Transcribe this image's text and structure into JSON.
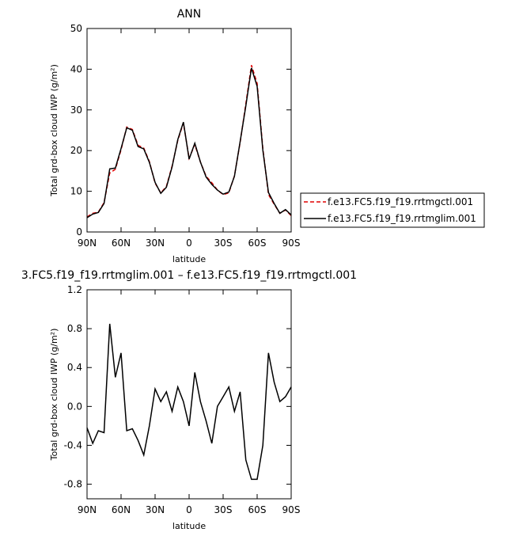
{
  "chart_data": [
    {
      "type": "line",
      "title": "ANN",
      "xlabel": "latitude",
      "ylabel": "Total grd-box cloud IWP (g/m²)",
      "x": [
        90,
        85,
        80,
        75,
        70,
        65,
        60,
        55,
        50,
        45,
        40,
        35,
        30,
        25,
        20,
        15,
        10,
        5,
        0,
        -5,
        -10,
        -15,
        -20,
        -25,
        -30,
        -35,
        -40,
        -45,
        -50,
        -55,
        -60,
        -65,
        -70,
        -75,
        -80,
        -85,
        -90
      ],
      "xlim": [
        90,
        -90
      ],
      "xticks": [
        {
          "value": 90,
          "label": "90N"
        },
        {
          "value": 60,
          "label": "60N"
        },
        {
          "value": 30,
          "label": "30N"
        },
        0,
        {
          "value": -30,
          "label": "30S"
        },
        {
          "value": -60,
          "label": "60S"
        },
        {
          "value": -90,
          "label": "90S"
        }
      ],
      "ylim": [
        0,
        50
      ],
      "yticks": [
        0,
        10,
        20,
        30,
        40,
        50
      ],
      "legend": "right",
      "series": [
        {
          "name": "f.e13.FC5.f19_f19.rrtmgctl.001",
          "color": "#e00000",
          "linestyle": "dashed",
          "values": [
            3.7,
            4.6,
            4.9,
            7.2,
            14.5,
            15.4,
            20.2,
            25.8,
            25.2,
            21.3,
            20.6,
            17.3,
            12.0,
            9.6,
            11.2,
            16.2,
            22.5,
            26.8,
            18.1,
            21.5,
            17.2,
            13.7,
            12.1,
            10.3,
            9.2,
            9.6,
            13.8,
            22.0,
            31.5,
            41.0,
            36.5,
            20.5,
            9.2,
            6.8,
            4.6,
            5.4,
            4.0
          ]
        },
        {
          "name": "f.e13.FC5.f19_f19.rrtmglim.001",
          "color": "#000000",
          "linestyle": "solid",
          "values": [
            3.5,
            4.4,
            4.8,
            7.0,
            15.5,
            15.7,
            20.5,
            25.6,
            25.0,
            21.0,
            20.4,
            17.1,
            12.2,
            9.5,
            11.0,
            16.0,
            22.7,
            27.0,
            17.9,
            21.8,
            17.2,
            13.5,
            11.7,
            10.3,
            9.3,
            9.8,
            13.7,
            22.2,
            31.0,
            40.3,
            35.8,
            20.1,
            9.7,
            7.0,
            4.6,
            5.5,
            4.2
          ]
        }
      ]
    },
    {
      "type": "line",
      "title": "3.FC5.f19_f19.rrtmglim.001 – f.e13.FC5.f19_f19.rrtmgctl.001",
      "xlabel": "latitude",
      "ylabel": "Total grd-box cloud IWP (g/m²)",
      "x": [
        90,
        85,
        80,
        75,
        70,
        65,
        60,
        55,
        50,
        45,
        40,
        35,
        30,
        25,
        20,
        15,
        10,
        5,
        0,
        -5,
        -10,
        -15,
        -20,
        -25,
        -30,
        -35,
        -40,
        -45,
        -50,
        -55,
        -60,
        -65,
        -70,
        -75,
        -80,
        -85,
        -90
      ],
      "xlim": [
        90,
        -90
      ],
      "xticks": [
        {
          "value": 90,
          "label": "90N"
        },
        {
          "value": 60,
          "label": "60N"
        },
        {
          "value": 30,
          "label": "30N"
        },
        0,
        {
          "value": -30,
          "label": "30S"
        },
        {
          "value": -60,
          "label": "60S"
        },
        {
          "value": -90,
          "label": "90S"
        }
      ],
      "ylim": [
        -0.95,
        1.2
      ],
      "yticks": [
        -0.8,
        -0.4,
        {
          "value": 0,
          "label": "0.0"
        },
        0.4,
        0.8,
        1.2
      ],
      "series": [
        {
          "color": "#000000",
          "linestyle": "solid",
          "values": [
            -0.22,
            -0.38,
            -0.25,
            -0.27,
            0.85,
            0.3,
            0.55,
            -0.25,
            -0.23,
            -0.35,
            -0.5,
            -0.2,
            0.18,
            0.05,
            0.15,
            -0.05,
            0.2,
            0.05,
            -0.2,
            0.35,
            0.05,
            -0.15,
            -0.38,
            0.0,
            0.1,
            0.2,
            -0.05,
            0.15,
            -0.55,
            -0.75,
            -0.75,
            -0.4,
            0.55,
            0.25,
            0.05,
            0.1,
            0.2
          ]
        }
      ]
    }
  ]
}
